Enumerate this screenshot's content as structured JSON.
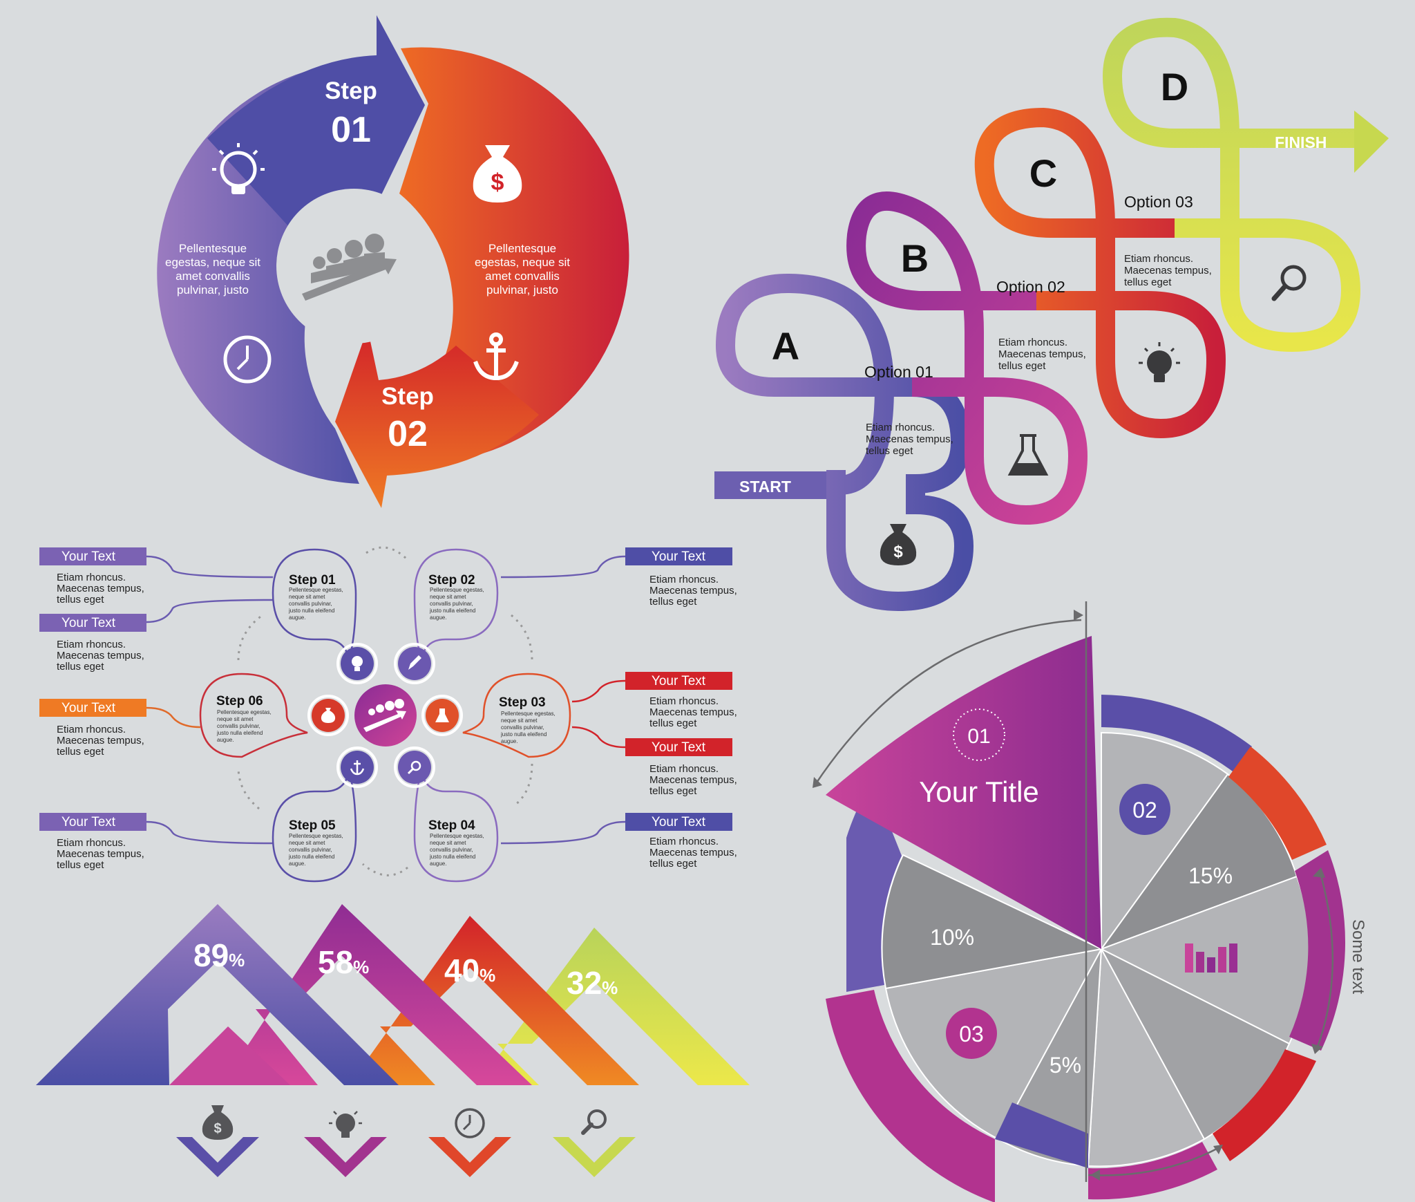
{
  "colors": {
    "background": "#d9dcde",
    "purple": "#5b4fa6",
    "violet": "#9a2f93",
    "red": "#d2232a",
    "orange": "#ef7a24",
    "lime": "#c7d84f",
    "grey": "#9e9fa2",
    "dark_text": "#111111"
  },
  "cycle": {
    "step1_word": "Step",
    "step1_num": "01",
    "step2_word": "Step",
    "step2_num": "02",
    "left_text": [
      "Pellentesque",
      "egestas, neque sit",
      "amet convallis",
      "pulvinar, justo"
    ],
    "right_text": [
      "Pellentesque",
      "egestas, neque sit",
      "amet convallis",
      "pulvinar, justo"
    ],
    "icons": [
      "lightbulb-icon",
      "clock-icon",
      "money-bag-icon",
      "anchor-icon",
      "team-growth-icon"
    ]
  },
  "loops": {
    "letters": [
      "A",
      "B",
      "C",
      "D"
    ],
    "start": "START",
    "finish": "FINISH",
    "option1": "Option 01",
    "option2": "Option 02",
    "option3": "Option 03",
    "text": [
      "Etiam rhoncus.",
      "Maecenas tempus,",
      "tellus eget"
    ],
    "icons": [
      "money-bag-icon",
      "flask-icon",
      "lightbulb-icon",
      "magnifier-icon"
    ]
  },
  "flower": {
    "left_labels": [
      "Your Text",
      "Your Text",
      "Your Text",
      "Your Text"
    ],
    "right_labels": [
      "Your Text",
      "Your Text",
      "Your Text",
      "Your Text"
    ],
    "label_text": [
      "Etiam rhoncus.",
      "Maecenas tempus,",
      "tellus eget"
    ],
    "step_word": "Step",
    "steps": [
      "01",
      "02",
      "03",
      "04",
      "05",
      "06"
    ],
    "step_text": [
      "Pellentesque egestas,",
      "neque sit amet",
      "convallis pulvinar,",
      "justo nulla eleifend",
      "augue."
    ],
    "icons": [
      "lightbulb-icon",
      "pencil-icon",
      "flask-icon",
      "magnifier-icon",
      "anchor-icon",
      "money-bag-icon",
      "team-growth-icon"
    ]
  },
  "mountains": {
    "values": [
      "89",
      "58",
      "40",
      "32"
    ],
    "percent": "%",
    "icons": [
      "money-bag-icon",
      "lightbulb-icon",
      "clock-icon",
      "magnifier-icon"
    ]
  },
  "pie": {
    "title_num": "01",
    "title": "Your Title",
    "label_02": "02",
    "label_03": "03",
    "p15": "15%",
    "p10": "10%",
    "p5": "5%",
    "side_text": "Some text",
    "icon": "bar-chart-icon"
  }
}
